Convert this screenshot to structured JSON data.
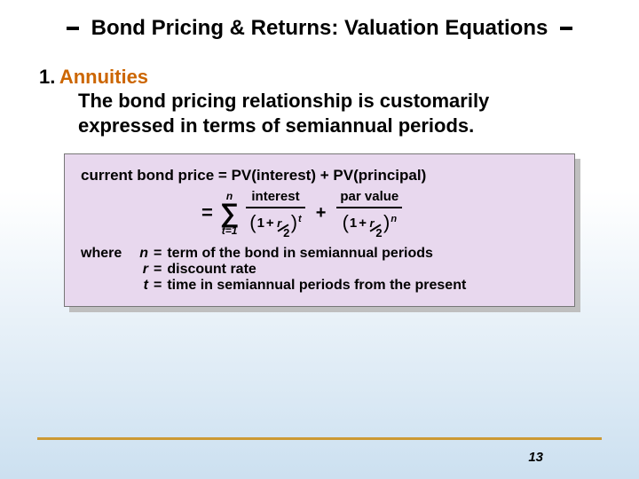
{
  "slide": {
    "title": "Bond Pricing & Returns: Valuation Equations",
    "section_number": "1.",
    "section_heading": "Annuities",
    "section_desc_l1": "The bond pricing relationship is customarily",
    "section_desc_l2": "expressed in terms of semiannual periods.",
    "page_number": "13"
  },
  "formula": {
    "line1_lhs": "current bond price",
    "line1_rhs1": "PV(interest)",
    "line1_rhs2": "PV(principal)",
    "sigma_top": "n",
    "sigma_sym": "∑",
    "sigma_bot": "t=1",
    "frac1_num": "interest",
    "frac2_num": "par value",
    "den_one": "1",
    "den_plus": "+",
    "r_var": "r",
    "r_div": "2",
    "exp1": "t",
    "exp2": "n",
    "where_label": "where",
    "defs": [
      {
        "var": "n",
        "text": "term of the bond in semiannual periods"
      },
      {
        "var": "r",
        "text": "discount rate"
      },
      {
        "var": "t",
        "text": "time in semiannual periods from the present"
      }
    ]
  },
  "style": {
    "accent_color": "#cc6600",
    "rule_color": "#cc9933",
    "formula_bg": "#e8d8ee",
    "shadow_color": "#bfbfbf",
    "bg_gradient_top": "#ffffff",
    "bg_gradient_bottom": "#cce0f0",
    "title_fontsize": 24,
    "body_fontsize": 22,
    "formula_fontsize": 17,
    "where_fontsize": 16
  }
}
